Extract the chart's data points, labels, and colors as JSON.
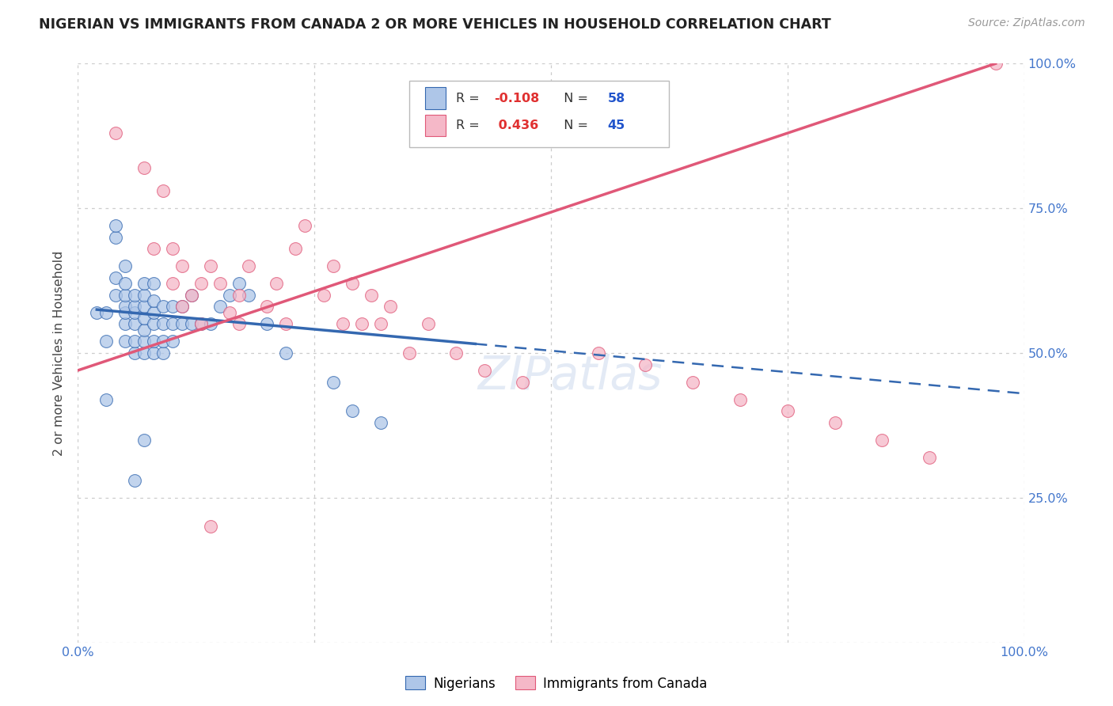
{
  "title": "NIGERIAN VS IMMIGRANTS FROM CANADA 2 OR MORE VEHICLES IN HOUSEHOLD CORRELATION CHART",
  "source": "Source: ZipAtlas.com",
  "ylabel": "2 or more Vehicles in Household",
  "r_nigerian": -0.108,
  "n_nigerian": 58,
  "r_canada": 0.436,
  "n_canada": 45,
  "blue_color": "#aec6e8",
  "pink_color": "#f5b8c8",
  "blue_line_color": "#3468b0",
  "pink_line_color": "#e05878",
  "xlim": [
    0.0,
    1.0
  ],
  "ylim": [
    0.0,
    1.0
  ],
  "nigerian_x": [
    0.02,
    0.03,
    0.03,
    0.03,
    0.04,
    0.04,
    0.04,
    0.04,
    0.05,
    0.05,
    0.05,
    0.05,
    0.05,
    0.05,
    0.05,
    0.06,
    0.06,
    0.06,
    0.06,
    0.06,
    0.06,
    0.07,
    0.07,
    0.07,
    0.07,
    0.07,
    0.07,
    0.07,
    0.08,
    0.08,
    0.08,
    0.08,
    0.08,
    0.08,
    0.09,
    0.09,
    0.09,
    0.09,
    0.1,
    0.1,
    0.1,
    0.11,
    0.11,
    0.12,
    0.12,
    0.13,
    0.14,
    0.15,
    0.16,
    0.17,
    0.18,
    0.2,
    0.22,
    0.27,
    0.29,
    0.32,
    0.06,
    0.07
  ],
  "nigerian_y": [
    0.57,
    0.42,
    0.52,
    0.57,
    0.6,
    0.63,
    0.7,
    0.72,
    0.52,
    0.55,
    0.57,
    0.58,
    0.6,
    0.62,
    0.65,
    0.5,
    0.52,
    0.55,
    0.57,
    0.58,
    0.6,
    0.5,
    0.52,
    0.54,
    0.56,
    0.58,
    0.6,
    0.62,
    0.5,
    0.52,
    0.55,
    0.57,
    0.59,
    0.62,
    0.5,
    0.52,
    0.55,
    0.58,
    0.52,
    0.55,
    0.58,
    0.55,
    0.58,
    0.55,
    0.6,
    0.55,
    0.55,
    0.58,
    0.6,
    0.62,
    0.6,
    0.55,
    0.5,
    0.45,
    0.4,
    0.38,
    0.28,
    0.35
  ],
  "canada_x": [
    0.04,
    0.07,
    0.08,
    0.09,
    0.1,
    0.1,
    0.11,
    0.11,
    0.12,
    0.13,
    0.13,
    0.14,
    0.15,
    0.16,
    0.17,
    0.17,
    0.18,
    0.2,
    0.21,
    0.22,
    0.23,
    0.24,
    0.26,
    0.27,
    0.28,
    0.29,
    0.3,
    0.31,
    0.32,
    0.33,
    0.35,
    0.37,
    0.4,
    0.43,
    0.47,
    0.55,
    0.6,
    0.65,
    0.7,
    0.75,
    0.8,
    0.85,
    0.9,
    0.97,
    0.14
  ],
  "canada_y": [
    0.88,
    0.82,
    0.68,
    0.78,
    0.62,
    0.68,
    0.58,
    0.65,
    0.6,
    0.62,
    0.55,
    0.65,
    0.62,
    0.57,
    0.55,
    0.6,
    0.65,
    0.58,
    0.62,
    0.55,
    0.68,
    0.72,
    0.6,
    0.65,
    0.55,
    0.62,
    0.55,
    0.6,
    0.55,
    0.58,
    0.5,
    0.55,
    0.5,
    0.47,
    0.45,
    0.5,
    0.48,
    0.45,
    0.42,
    0.4,
    0.38,
    0.35,
    0.32,
    1.0,
    0.2
  ],
  "blue_trend_start_x": 0.02,
  "blue_trend_end_solid_x": 0.42,
  "blue_trend_end_x": 1.0,
  "blue_trend_start_y": 0.575,
  "blue_trend_end_y": 0.43,
  "pink_trend_start_x": 0.0,
  "pink_trend_end_x": 0.97,
  "pink_trend_start_y": 0.47,
  "pink_trend_end_y": 1.0
}
